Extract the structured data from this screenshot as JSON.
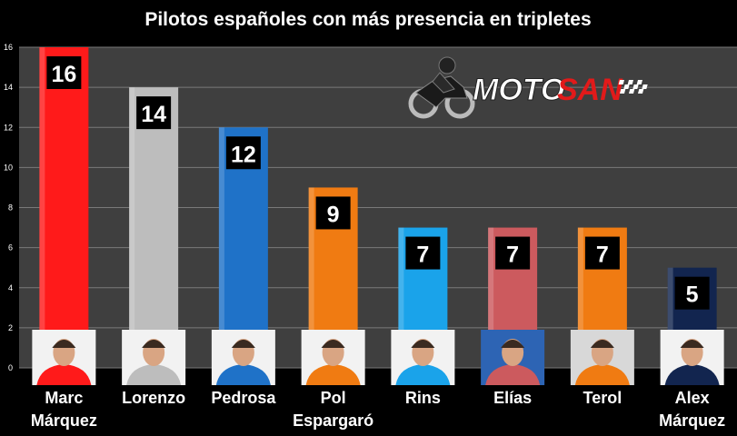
{
  "chart_data": {
    "type": "bar",
    "title": "Pilotos españoles con más presencia en tripletes",
    "xlabel": "",
    "ylabel": "",
    "ylim": [
      0,
      16
    ],
    "yticks": [
      0,
      2,
      4,
      6,
      8,
      10,
      12,
      14,
      16
    ],
    "grid": true,
    "categories": [
      [
        "Marc",
        "Márquez"
      ],
      [
        "Lorenzo"
      ],
      [
        "Pedrosa"
      ],
      [
        "Pol",
        "Espargaró"
      ],
      [
        "Rins"
      ],
      [
        "Elías"
      ],
      [
        "Terol"
      ],
      [
        "Alex",
        "Márquez"
      ]
    ],
    "values": [
      16,
      14,
      12,
      9,
      7,
      7,
      7,
      5
    ],
    "colors": [
      "#ff1a1a",
      "#bdbdbd",
      "#1f72c8",
      "#f07b12",
      "#1aa3ea",
      "#cc5a5e",
      "#f07b12",
      "#12254f"
    ],
    "portrait_bg": [
      "#f2f2f2",
      "#f2f2f2",
      "#f2f2f2",
      "#f2f2f2",
      "#f2f2f2",
      "#2d64b4",
      "#d8d8d8",
      "#f2f2f2"
    ],
    "background": "#3f3f3f"
  },
  "logo": {
    "text_a": "MOTO",
    "text_b": "SAN",
    "color": "#e21a1a"
  }
}
